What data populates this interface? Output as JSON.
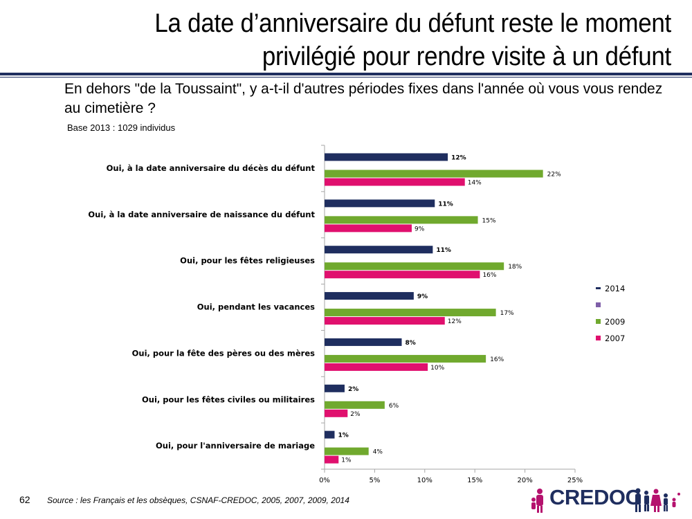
{
  "title": {
    "line1": "La date d’anniversaire du défunt reste le moment",
    "line2": "privilégié pour rendre visite à un défunt"
  },
  "question": "En dehors \"de la Toussaint\", y a-t-il d'autres périodes fixes dans l'année où vous vous rendez au cimetière ?",
  "base_note": "Base 2013 : 1029 individus",
  "page_number": "62",
  "source": "Source : les Français et les obsèques, CSNAF-CREDOC, 2005, 2007, 2009, 2014",
  "logo": {
    "text": "CREDOC",
    "color": "#1f2e5f",
    "accent": "#b5126e"
  },
  "chart_data": {
    "type": "bar",
    "orientation": "horizontal",
    "categories": [
      "Oui, à la date anniversaire du décès du défunt",
      "Oui, à la date anniversaire de naissance du défunt",
      "Oui, pour les fêtes religieuses",
      "Oui, pendant les vacances",
      "Oui, pour la fête des pères ou des mères",
      "Oui, pour les fêtes civiles ou militaires",
      "Oui, pour l'anniversaire de mariage"
    ],
    "series": [
      {
        "name": "2014",
        "color": "#1f2e5f",
        "bold": true,
        "values": [
          12.3,
          11.0,
          10.8,
          8.9,
          7.7,
          2.0,
          1.0
        ],
        "labels": [
          "12%",
          "11%",
          "11%",
          "9%",
          "8%",
          "2%",
          "1%"
        ]
      },
      {
        "name": "",
        "color": "#7f5fa8",
        "values": null,
        "labels": null
      },
      {
        "name": "2009",
        "color": "#70a92e",
        "bold": false,
        "values": [
          21.8,
          15.3,
          17.9,
          17.1,
          16.1,
          6.0,
          4.4
        ],
        "labels": [
          "22%",
          "15%",
          "18%",
          "17%",
          "16%",
          "6%",
          "4%"
        ]
      },
      {
        "name": "2007",
        "color": "#e0106e",
        "bold": false,
        "values": [
          14.0,
          8.7,
          15.5,
          12.0,
          10.3,
          2.3,
          1.4
        ],
        "labels": [
          "14%",
          "9%",
          "16%",
          "12%",
          "10%",
          "2%",
          "1%"
        ]
      }
    ],
    "xlim": [
      0,
      25
    ],
    "xticks": [
      0,
      5,
      10,
      15,
      20,
      25
    ],
    "xtick_labels": [
      "0%",
      "5%",
      "10%",
      "15%",
      "20%",
      "25%"
    ],
    "legend": {
      "position": "right",
      "entries": [
        "2014",
        "",
        "2009",
        "2007"
      ]
    },
    "grid": false
  }
}
